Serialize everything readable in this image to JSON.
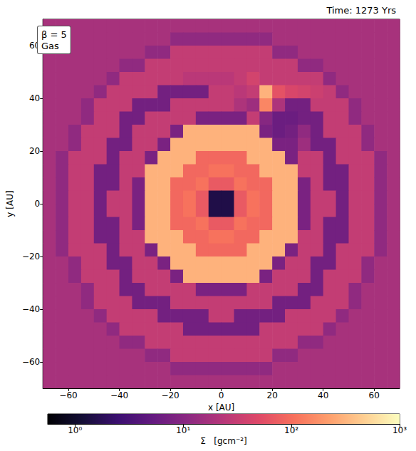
{
  "chart_data": {
    "type": "heatmap",
    "title": "Time: 1273 Yrs",
    "annotations": [
      "β = 5",
      "Gas"
    ],
    "x_label": "x [AU]",
    "y_label": "y [AU]",
    "xlim": [
      -70,
      70
    ],
    "ylim": [
      -70,
      70
    ],
    "xticks": [
      {
        "value": -60,
        "label": "−60"
      },
      {
        "value": -40,
        "label": "−40"
      },
      {
        "value": -20,
        "label": "−20"
      },
      0,
      20,
      40,
      60
    ],
    "yticks": [
      {
        "value": -60,
        "label": "−60"
      },
      {
        "value": -40,
        "label": "−40"
      },
      {
        "value": -20,
        "label": "−20"
      },
      0,
      20,
      40,
      60
    ],
    "grid": false,
    "color": "magma",
    "x": [
      -67.5,
      -62.5,
      -57.5,
      -52.5,
      -47.5,
      -42.5,
      -37.5,
      -32.5,
      -27.5,
      -22.5,
      -17.5,
      -12.5,
      -7.5,
      -2.5,
      2.5,
      7.5,
      12.5,
      17.5,
      22.5,
      27.5,
      32.5,
      37.5,
      42.5,
      47.5,
      52.5,
      57.5,
      62.5,
      67.5
    ],
    "y": [
      67.5,
      62.5,
      57.5,
      52.5,
      47.5,
      42.5,
      37.5,
      32.5,
      27.5,
      22.5,
      17.5,
      12.5,
      7.5,
      2.5,
      -2.5,
      -7.5,
      -12.5,
      -17.5,
      -22.5,
      -27.5,
      -32.5,
      -37.5,
      -42.5,
      -47.5,
      -52.5,
      -57.5,
      -62.5,
      -67.5
    ],
    "values": [
      [
        18,
        18,
        18,
        18,
        18,
        18,
        18,
        18,
        18,
        18,
        18,
        18,
        18,
        18,
        18,
        18,
        18,
        18,
        18,
        18,
        18,
        18,
        18,
        18,
        18,
        18,
        18,
        18
      ],
      [
        18,
        18,
        18,
        18,
        18,
        18,
        18,
        18,
        18,
        18,
        12,
        12,
        12,
        12,
        12,
        12,
        12,
        12,
        18,
        18,
        18,
        18,
        18,
        18,
        18,
        18,
        18,
        18
      ],
      [
        18,
        18,
        18,
        18,
        18,
        18,
        18,
        18,
        12,
        12,
        30,
        30,
        30,
        30,
        30,
        30,
        30,
        30,
        12,
        12,
        18,
        18,
        18,
        18,
        18,
        18,
        18,
        18
      ],
      [
        18,
        18,
        18,
        18,
        18,
        18,
        12,
        12,
        30,
        30,
        30,
        30,
        30,
        30,
        30,
        30,
        30,
        30,
        30,
        30,
        12,
        12,
        18,
        18,
        18,
        18,
        18,
        18
      ],
      [
        18,
        18,
        18,
        18,
        18,
        12,
        30,
        30,
        30,
        30,
        30,
        25,
        25,
        25,
        25,
        30,
        40,
        30,
        30,
        30,
        30,
        30,
        12,
        18,
        18,
        18,
        18,
        18
      ],
      [
        18,
        18,
        18,
        18,
        12,
        30,
        30,
        30,
        30,
        7,
        7,
        7,
        7,
        30,
        30,
        25,
        30,
        300,
        60,
        45,
        40,
        35,
        30,
        12,
        18,
        18,
        18,
        18
      ],
      [
        18,
        18,
        18,
        12,
        30,
        30,
        30,
        7,
        7,
        7,
        30,
        30,
        30,
        30,
        30,
        20,
        15,
        150,
        20,
        7,
        7,
        30,
        30,
        30,
        12,
        18,
        18,
        18
      ],
      [
        18,
        18,
        18,
        12,
        30,
        30,
        7,
        7,
        30,
        30,
        30,
        30,
        8,
        8,
        8,
        8,
        30,
        10,
        6,
        6,
        7,
        7,
        30,
        30,
        12,
        18,
        18,
        18
      ],
      [
        18,
        18,
        12,
        30,
        30,
        30,
        7,
        30,
        30,
        30,
        8,
        300,
        300,
        300,
        300,
        300,
        300,
        8,
        6,
        7,
        12,
        7,
        30,
        30,
        30,
        12,
        18,
        18
      ],
      [
        18,
        18,
        12,
        30,
        30,
        7,
        7,
        30,
        30,
        8,
        300,
        300,
        300,
        300,
        300,
        300,
        300,
        300,
        8,
        8,
        15,
        7,
        7,
        30,
        30,
        12,
        18,
        18
      ],
      [
        18,
        12,
        30,
        30,
        30,
        7,
        30,
        30,
        8,
        300,
        300,
        300,
        90,
        90,
        90,
        90,
        300,
        300,
        300,
        8,
        30,
        30,
        7,
        30,
        30,
        30,
        12,
        18
      ],
      [
        18,
        12,
        30,
        30,
        7,
        7,
        30,
        30,
        300,
        300,
        300,
        90,
        90,
        110,
        110,
        90,
        90,
        300,
        300,
        300,
        30,
        30,
        7,
        7,
        30,
        30,
        12,
        18
      ],
      [
        18,
        12,
        30,
        30,
        7,
        7,
        30,
        8,
        300,
        300,
        90,
        90,
        110,
        70,
        70,
        110,
        90,
        90,
        300,
        300,
        8,
        30,
        7,
        7,
        30,
        30,
        12,
        18
      ],
      [
        18,
        12,
        30,
        30,
        7,
        30,
        30,
        8,
        300,
        300,
        90,
        110,
        70,
        1.5,
        1.5,
        70,
        110,
        90,
        300,
        300,
        8,
        30,
        30,
        7,
        30,
        30,
        12,
        18
      ],
      [
        18,
        12,
        30,
        30,
        7,
        30,
        30,
        8,
        300,
        300,
        90,
        110,
        70,
        1.5,
        1.5,
        70,
        110,
        90,
        300,
        300,
        8,
        30,
        30,
        7,
        30,
        30,
        12,
        18
      ],
      [
        18,
        12,
        30,
        30,
        7,
        7,
        30,
        8,
        300,
        300,
        90,
        90,
        110,
        70,
        70,
        110,
        90,
        90,
        300,
        300,
        8,
        30,
        7,
        7,
        30,
        30,
        12,
        18
      ],
      [
        18,
        12,
        30,
        30,
        7,
        7,
        30,
        30,
        300,
        300,
        300,
        90,
        90,
        110,
        110,
        90,
        90,
        300,
        300,
        300,
        30,
        30,
        7,
        7,
        30,
        30,
        12,
        18
      ],
      [
        18,
        12,
        30,
        30,
        30,
        7,
        30,
        30,
        8,
        300,
        300,
        300,
        90,
        90,
        90,
        90,
        300,
        300,
        300,
        8,
        30,
        30,
        7,
        30,
        30,
        30,
        12,
        18
      ],
      [
        18,
        18,
        12,
        30,
        30,
        7,
        7,
        30,
        30,
        8,
        300,
        300,
        300,
        300,
        300,
        300,
        300,
        300,
        8,
        30,
        30,
        7,
        7,
        30,
        30,
        12,
        18,
        18
      ],
      [
        18,
        18,
        12,
        30,
        30,
        30,
        7,
        30,
        30,
        30,
        8,
        300,
        300,
        300,
        300,
        300,
        300,
        8,
        30,
        30,
        30,
        7,
        30,
        30,
        30,
        12,
        18,
        18
      ],
      [
        18,
        18,
        18,
        12,
        30,
        30,
        7,
        7,
        30,
        30,
        30,
        30,
        8,
        8,
        8,
        8,
        30,
        30,
        30,
        30,
        7,
        7,
        30,
        30,
        12,
        18,
        18,
        18
      ],
      [
        18,
        18,
        18,
        12,
        30,
        30,
        30,
        7,
        7,
        7,
        30,
        30,
        30,
        30,
        30,
        30,
        30,
        30,
        7,
        7,
        7,
        30,
        30,
        30,
        12,
        18,
        18,
        18
      ],
      [
        18,
        18,
        18,
        18,
        12,
        30,
        30,
        30,
        30,
        7,
        7,
        7,
        7,
        30,
        30,
        7,
        7,
        7,
        7,
        30,
        30,
        30,
        30,
        12,
        18,
        18,
        18,
        18
      ],
      [
        18,
        18,
        18,
        18,
        18,
        12,
        30,
        30,
        30,
        30,
        30,
        7,
        7,
        7,
        7,
        7,
        7,
        30,
        30,
        30,
        30,
        30,
        12,
        18,
        18,
        18,
        18,
        18
      ],
      [
        18,
        18,
        18,
        18,
        18,
        18,
        12,
        12,
        30,
        30,
        30,
        30,
        30,
        30,
        30,
        30,
        30,
        30,
        30,
        30,
        12,
        12,
        18,
        18,
        18,
        18,
        18,
        18
      ],
      [
        18,
        18,
        18,
        18,
        18,
        18,
        18,
        18,
        12,
        12,
        30,
        30,
        30,
        30,
        30,
        30,
        30,
        30,
        12,
        12,
        18,
        18,
        18,
        18,
        18,
        18,
        18,
        18
      ],
      [
        18,
        18,
        18,
        18,
        18,
        18,
        18,
        18,
        18,
        18,
        12,
        12,
        12,
        12,
        12,
        12,
        12,
        12,
        18,
        18,
        18,
        18,
        18,
        18,
        18,
        18,
        18,
        18
      ],
      [
        18,
        18,
        18,
        18,
        18,
        18,
        18,
        18,
        18,
        18,
        18,
        18,
        18,
        18,
        18,
        18,
        18,
        18,
        18,
        18,
        18,
        18,
        18,
        18,
        18,
        18,
        18,
        18
      ]
    ],
    "colorbar": {
      "label": "Σ   [gcm⁻²]",
      "log": true,
      "lim": [
        0.56,
        1000
      ],
      "ticks": [
        {
          "value": 1,
          "label": "10⁰"
        },
        {
          "value": 10,
          "label": "10¹"
        },
        {
          "value": 100,
          "label": "10²"
        },
        {
          "value": 1000,
          "label": "10³"
        }
      ]
    }
  }
}
